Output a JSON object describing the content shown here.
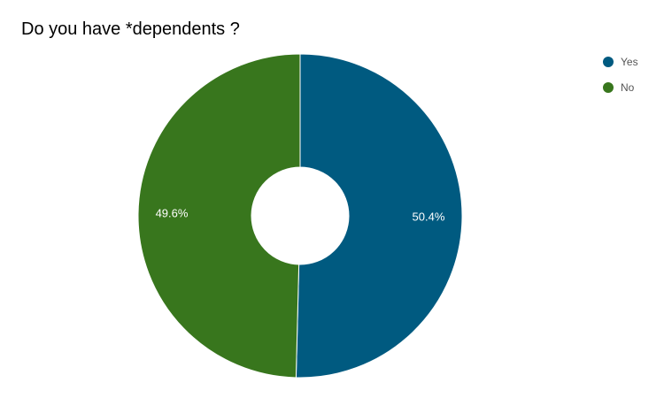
{
  "chart_data": {
    "type": "pie",
    "title": "Do you have *dependents ?",
    "donut": true,
    "legend_position": "right",
    "slices": [
      {
        "label": "Yes",
        "value": 50.4,
        "value_label": "50.4%",
        "color": "#005a80"
      },
      {
        "label": "No",
        "value": 49.6,
        "value_label": "49.6%",
        "color": "#38761d"
      }
    ]
  }
}
